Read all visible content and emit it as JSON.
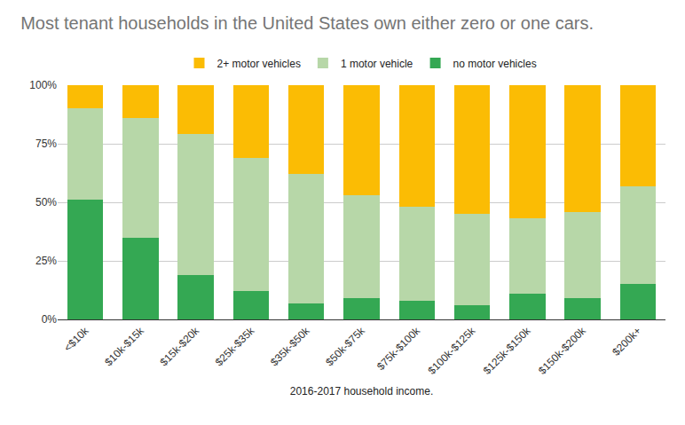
{
  "chart_data": {
    "type": "bar",
    "title": "Most tenant households in the United States own either zero or one cars.",
    "x_label": "2016-2017 household income.",
    "categories": [
      "<$10k",
      "$10k-$15k",
      "$15k-$20k",
      "$25k-$35k",
      "$35k-$50k",
      "$50k-$75k",
      "$75k-$100k",
      "$100k-$125k",
      "$125k-$150k",
      "$150k-$200k",
      "$200k+"
    ],
    "series": [
      {
        "name": "no motor vehicles",
        "color": "#34a853",
        "values": [
          51,
          35,
          19,
          12,
          7,
          9,
          8,
          6,
          11,
          9,
          15
        ]
      },
      {
        "name": "1 motor vehicle",
        "color": "#b7d7a8",
        "values": [
          39,
          51,
          60,
          57,
          55,
          44,
          40,
          39,
          32,
          37,
          42
        ]
      },
      {
        "name": "2+ motor vehicles",
        "color": "#fbbc04",
        "values": [
          10,
          14,
          21,
          31,
          38,
          47,
          52,
          55,
          57,
          54,
          43
        ]
      }
    ],
    "stacked": true,
    "ylim": [
      0,
      100
    ],
    "yticks": [
      {
        "value": 0,
        "label": "0%"
      },
      {
        "value": 25,
        "label": "25%"
      },
      {
        "value": 50,
        "label": "50%"
      },
      {
        "value": 75,
        "label": "75%"
      },
      {
        "value": 100,
        "label": "100%"
      }
    ],
    "grid": true,
    "legend": "top"
  }
}
